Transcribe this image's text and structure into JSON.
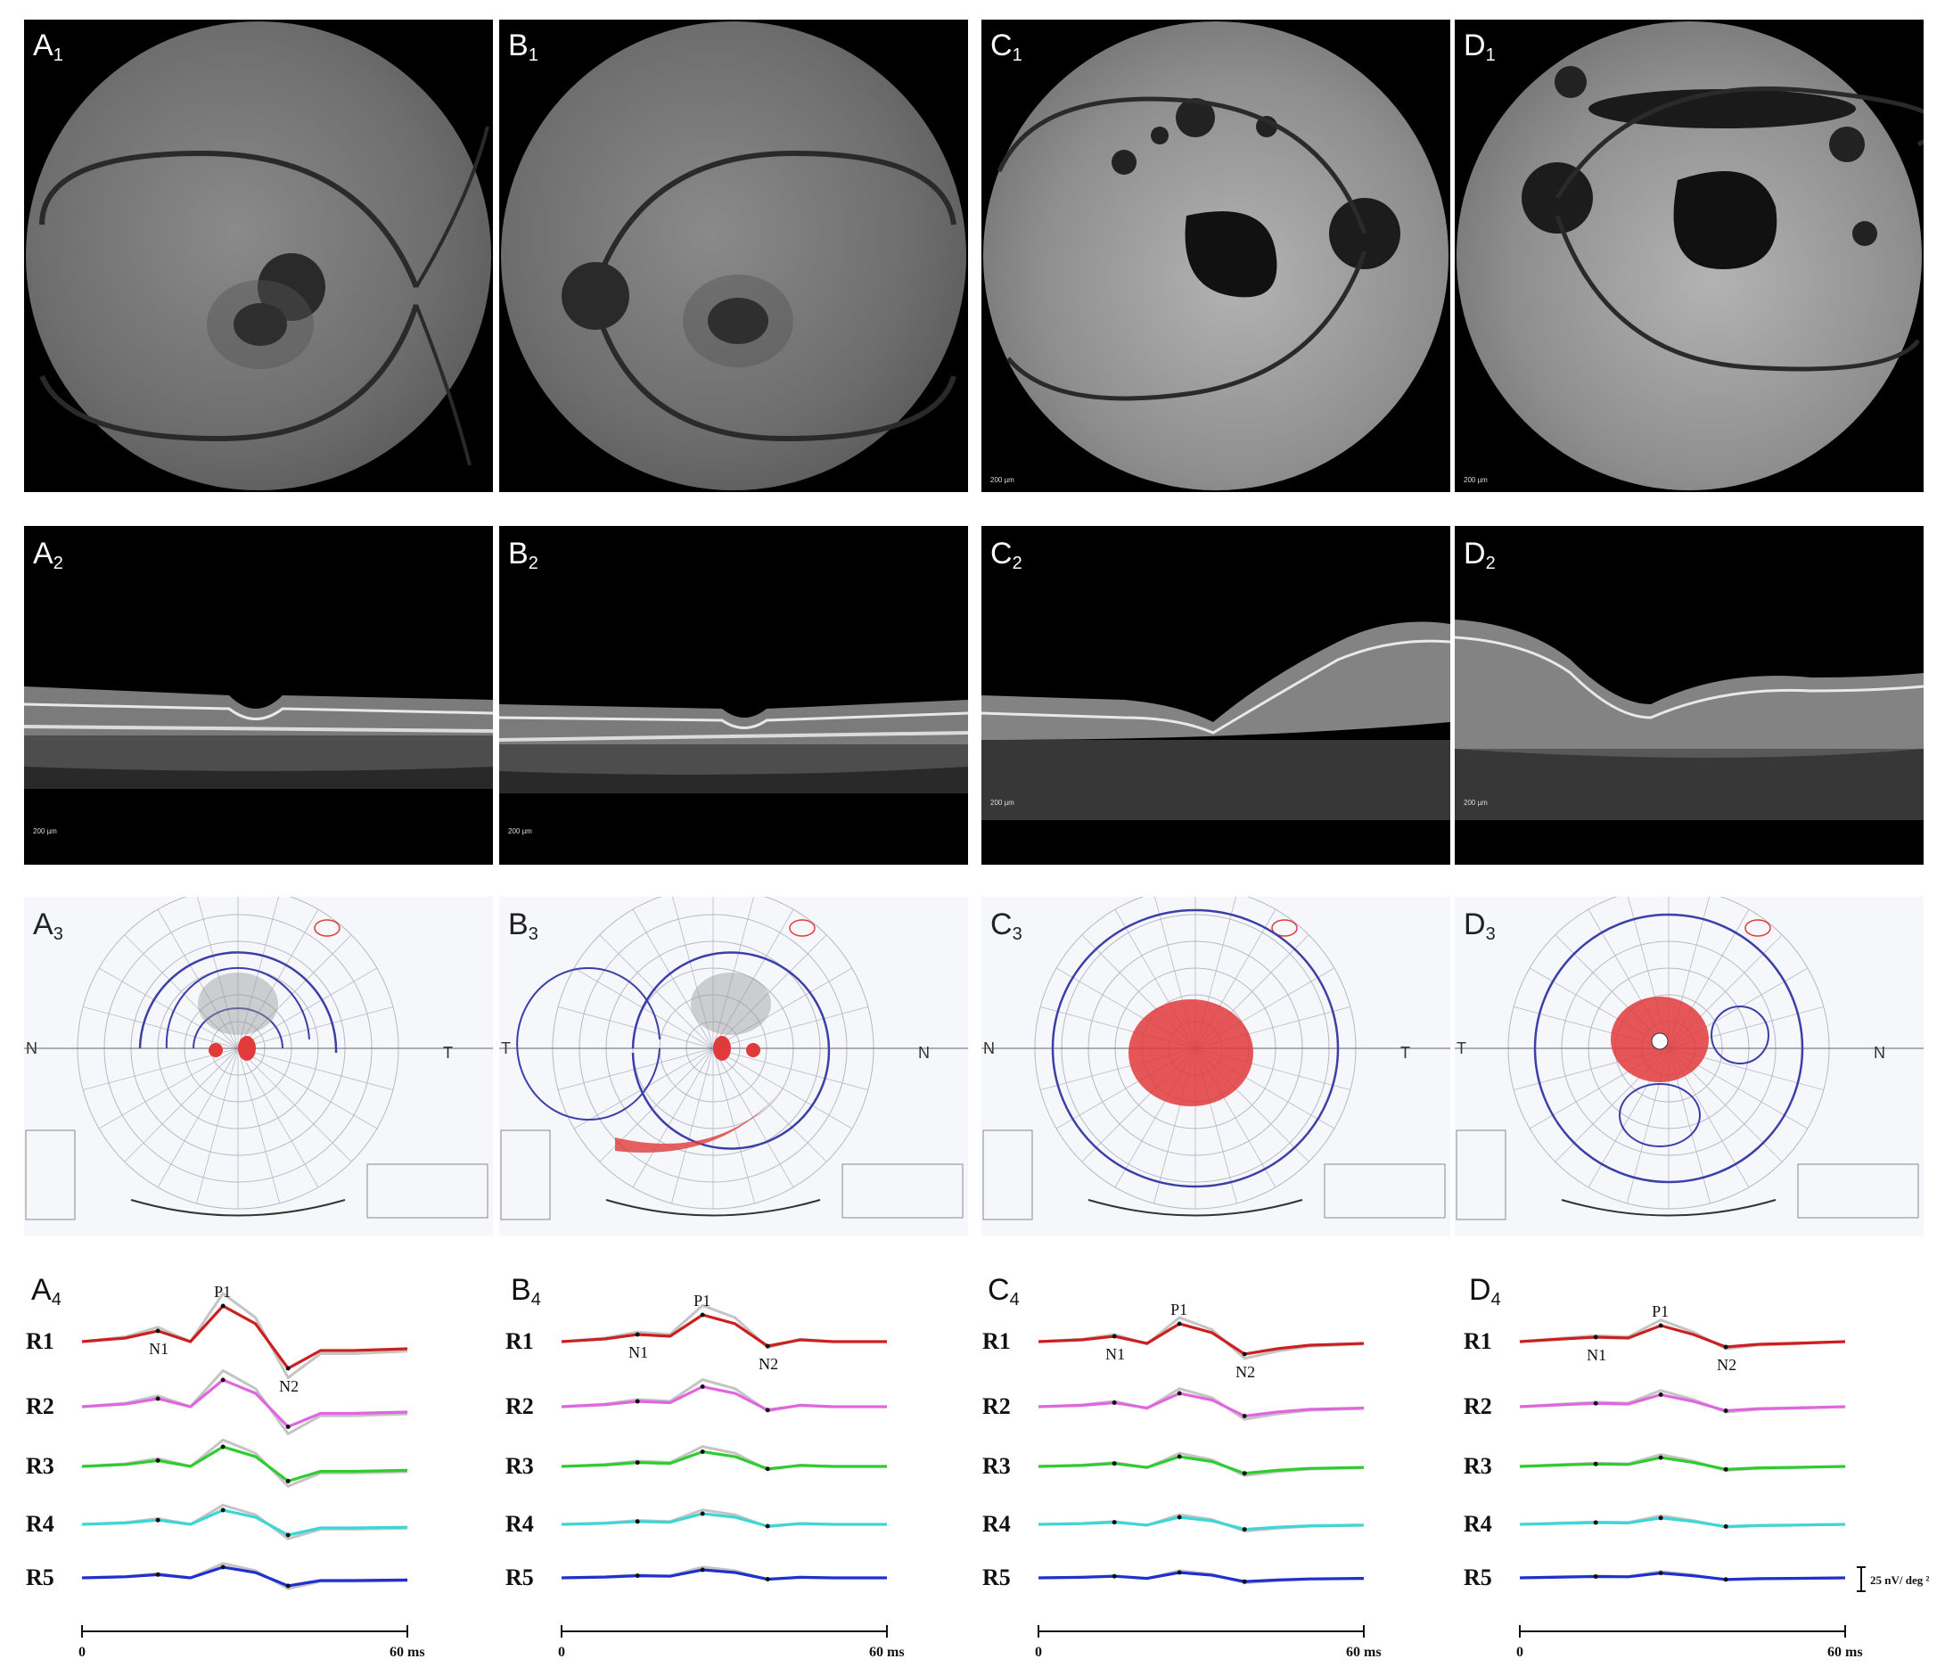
{
  "figure": {
    "fundus_labels": [
      "A",
      "B",
      "C",
      "D"
    ],
    "fundus_subscript": "1",
    "oct_subscript": "2",
    "vf_subscript": "3",
    "erg_subscript": "4",
    "fundus_scale": [
      "",
      "",
      "200 µm",
      "200 µm"
    ],
    "oct_scale": [
      "200 µm",
      "200 µm",
      "200 µm",
      "200 µm"
    ]
  },
  "visual_field": {
    "nasal_letter": "N",
    "temporal_letter": "T",
    "panels": [
      {
        "left": "N",
        "right": "T"
      },
      {
        "left": "T",
        "right": "N"
      },
      {
        "left": "N",
        "right": "T"
      },
      {
        "left": "T",
        "right": "N"
      }
    ],
    "colors": {
      "isopter": "#3b3fa8",
      "scotoma": "#e03a3a",
      "grid": "#b6b8c8"
    }
  },
  "erg": {
    "row_labels": [
      "R1",
      "R2",
      "R3",
      "R4",
      "R5"
    ],
    "peak_labels": {
      "p1": "P1",
      "n1": "N1",
      "n2": "N2"
    },
    "axis_start": "0",
    "axis_end": "60 ms",
    "scale_label": "25 nV/ deg ²",
    "colors": [
      "#cc1f1f",
      "#e066e0",
      "#2ecc2e",
      "#3dd6d6",
      "#1f2fd0"
    ],
    "reference_color": "#c4c4c4"
  }
}
